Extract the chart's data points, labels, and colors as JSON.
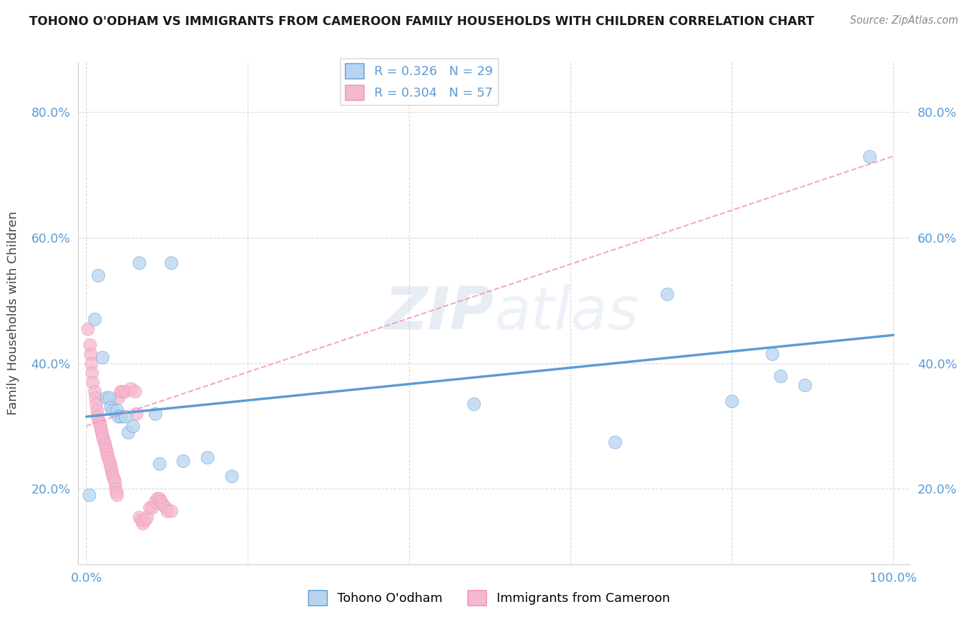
{
  "title": "TOHONO O'ODHAM VS IMMIGRANTS FROM CAMEROON FAMILY HOUSEHOLDS WITH CHILDREN CORRELATION CHART",
  "source": "Source: ZipAtlas.com",
  "ylabel": "Family Households with Children",
  "watermark": "ZIPatlas",
  "xlim": [
    -0.01,
    1.02
  ],
  "ylim": [
    0.08,
    0.88
  ],
  "xticks": [
    0.0,
    0.2,
    0.4,
    0.6,
    0.8,
    1.0
  ],
  "xtick_labels": [
    "0.0%",
    "",
    "",
    "",
    "",
    "100.0%"
  ],
  "yticks": [
    0.2,
    0.4,
    0.6,
    0.8
  ],
  "ytick_labels": [
    "20.0%",
    "40.0%",
    "60.0%",
    "80.0%"
  ],
  "blue_scatter": [
    [
      0.003,
      0.19
    ],
    [
      0.01,
      0.47
    ],
    [
      0.015,
      0.54
    ],
    [
      0.02,
      0.41
    ],
    [
      0.025,
      0.345
    ],
    [
      0.028,
      0.345
    ],
    [
      0.03,
      0.33
    ],
    [
      0.033,
      0.325
    ],
    [
      0.038,
      0.325
    ],
    [
      0.04,
      0.315
    ],
    [
      0.043,
      0.315
    ],
    [
      0.048,
      0.315
    ],
    [
      0.052,
      0.29
    ],
    [
      0.058,
      0.3
    ],
    [
      0.065,
      0.56
    ],
    [
      0.085,
      0.32
    ],
    [
      0.09,
      0.24
    ],
    [
      0.105,
      0.56
    ],
    [
      0.12,
      0.245
    ],
    [
      0.15,
      0.25
    ],
    [
      0.18,
      0.22
    ],
    [
      0.48,
      0.335
    ],
    [
      0.655,
      0.275
    ],
    [
      0.72,
      0.51
    ],
    [
      0.8,
      0.34
    ],
    [
      0.85,
      0.415
    ],
    [
      0.86,
      0.38
    ],
    [
      0.89,
      0.365
    ],
    [
      0.97,
      0.73
    ]
  ],
  "pink_scatter": [
    [
      0.002,
      0.455
    ],
    [
      0.004,
      0.43
    ],
    [
      0.005,
      0.415
    ],
    [
      0.006,
      0.4
    ],
    [
      0.007,
      0.385
    ],
    [
      0.008,
      0.37
    ],
    [
      0.01,
      0.355
    ],
    [
      0.011,
      0.345
    ],
    [
      0.012,
      0.335
    ],
    [
      0.013,
      0.325
    ],
    [
      0.014,
      0.315
    ],
    [
      0.015,
      0.31
    ],
    [
      0.016,
      0.305
    ],
    [
      0.017,
      0.3
    ],
    [
      0.018,
      0.295
    ],
    [
      0.019,
      0.29
    ],
    [
      0.02,
      0.285
    ],
    [
      0.021,
      0.28
    ],
    [
      0.022,
      0.275
    ],
    [
      0.023,
      0.27
    ],
    [
      0.024,
      0.265
    ],
    [
      0.025,
      0.26
    ],
    [
      0.026,
      0.255
    ],
    [
      0.027,
      0.25
    ],
    [
      0.028,
      0.245
    ],
    [
      0.029,
      0.24
    ],
    [
      0.03,
      0.235
    ],
    [
      0.031,
      0.23
    ],
    [
      0.032,
      0.225
    ],
    [
      0.033,
      0.22
    ],
    [
      0.034,
      0.215
    ],
    [
      0.035,
      0.21
    ],
    [
      0.036,
      0.2
    ],
    [
      0.037,
      0.195
    ],
    [
      0.038,
      0.19
    ],
    [
      0.04,
      0.345
    ],
    [
      0.042,
      0.355
    ],
    [
      0.045,
      0.355
    ],
    [
      0.048,
      0.355
    ],
    [
      0.055,
      0.36
    ],
    [
      0.06,
      0.355
    ],
    [
      0.062,
      0.32
    ],
    [
      0.065,
      0.155
    ],
    [
      0.068,
      0.15
    ],
    [
      0.07,
      0.145
    ],
    [
      0.072,
      0.15
    ],
    [
      0.075,
      0.155
    ],
    [
      0.078,
      0.17
    ],
    [
      0.082,
      0.17
    ],
    [
      0.085,
      0.18
    ],
    [
      0.088,
      0.185
    ],
    [
      0.09,
      0.185
    ],
    [
      0.092,
      0.18
    ],
    [
      0.095,
      0.175
    ],
    [
      0.098,
      0.17
    ],
    [
      0.1,
      0.165
    ],
    [
      0.105,
      0.165
    ]
  ],
  "blue_line": {
    "x0": 0.0,
    "y0": 0.315,
    "x1": 1.0,
    "y1": 0.445
  },
  "pink_line": {
    "x0": 0.0,
    "y0": 0.3,
    "x1": 1.0,
    "y1": 0.73
  },
  "blue_color": "#5b9bd5",
  "pink_color": "#f48fb1",
  "blue_scatter_color": "#b8d4f0",
  "pink_scatter_color": "#f4b8d0",
  "grid_color": "#d8d8d8",
  "tick_color": "#5b9bd5",
  "background_color": "#ffffff"
}
